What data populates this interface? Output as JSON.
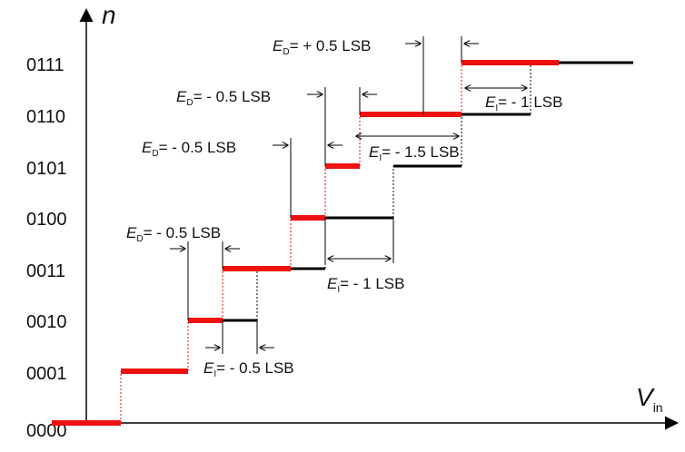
{
  "axes": {
    "y_label": "n",
    "x_label_main": "V",
    "x_label_sub": "in"
  },
  "codes": [
    "0000",
    "0001",
    "0010",
    "0011",
    "0100",
    "0101",
    "0110",
    "0111"
  ],
  "annotations": {
    "ed1": {
      "sym": "E",
      "sub": "D",
      "rest": "= + 0.5 LSB"
    },
    "ed2": {
      "sym": "E",
      "sub": "D",
      "rest": "= - 0.5 LSB"
    },
    "ed3": {
      "sym": "E",
      "sub": "D",
      "rest": "= - 0.5 LSB"
    },
    "ed4": {
      "sym": "E",
      "sub": "D",
      "rest": "= - 0.5 LSB"
    },
    "ei1": {
      "sym": "E",
      "sub": "I",
      "rest": "= - 1 LSB"
    },
    "ei2": {
      "sym": "E",
      "sub": "I",
      "rest": "= - 1.5 LSB"
    },
    "ei3": {
      "sym": "E",
      "sub": "I",
      "rest": "= - 1 LSB"
    },
    "ei4": {
      "sym": "E",
      "sub": "I",
      "rest": "= - 0.5 LSB"
    }
  },
  "colors": {
    "ideal": "#000000",
    "actual": "#ee1111"
  }
}
